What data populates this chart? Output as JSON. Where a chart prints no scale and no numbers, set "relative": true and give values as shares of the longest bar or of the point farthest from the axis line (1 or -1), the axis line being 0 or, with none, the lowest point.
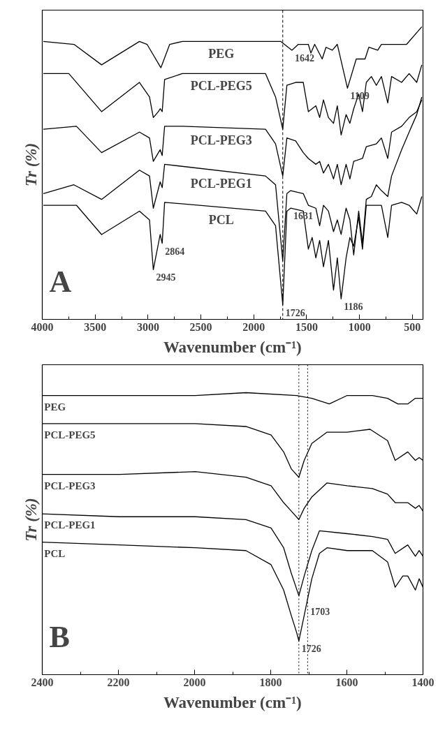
{
  "chart_data": [
    {
      "type": "line",
      "relative": true,
      "xlim": [
        4000,
        400
      ],
      "xticks": [
        4000,
        3500,
        3000,
        2500,
        2000,
        1500,
        1000,
        500
      ],
      "xlabel": "Wavenumber (cm⁻¹)",
      "ylabel": "Tr (%)",
      "tick_labels": "x",
      "line_style": "solid",
      "series": [
        {
          "name": "PEG",
          "color": "#000000",
          "x": [
            3990,
            3700,
            3439,
            3081,
            3009,
            2878,
            2795,
            2676,
            1746,
            1639,
            1579,
            1484,
            1460,
            1424,
            1353,
            1317,
            1257,
            1210,
            1114,
            1031,
            948,
            912,
            828,
            793,
            555,
            411
          ],
          "values": [
            0.95,
            0.94,
            0.87,
            0.95,
            0.94,
            0.86,
            0.94,
            0.95,
            0.95,
            0.92,
            0.94,
            0.94,
            0.91,
            0.94,
            0.89,
            0.93,
            0.92,
            0.94,
            0.79,
            0.89,
            0.89,
            0.93,
            0.92,
            0.94,
            0.94,
            1.0
          ]
        },
        {
          "name": "PCL-PEG5",
          "color": "#000000",
          "x": [
            3990,
            3749,
            3439,
            3081,
            2986,
            2950,
            2902,
            2885,
            2866,
            2843,
            2676,
            2318,
            1889,
            1794,
            1726,
            1687,
            1604,
            1532,
            1484,
            1413,
            1377,
            1341,
            1294,
            1246,
            1210,
            1174,
            1127,
            1091,
            1055,
            1008,
            972,
            936,
            888,
            841,
            793,
            733,
            697,
            602,
            531,
            459,
            411
          ],
          "values": [
            0.84,
            0.84,
            0.71,
            0.81,
            0.76,
            0.69,
            0.71,
            0.72,
            0.71,
            0.82,
            0.84,
            0.84,
            0.84,
            0.76,
            0.65,
            0.8,
            0.81,
            0.81,
            0.71,
            0.73,
            0.69,
            0.75,
            0.69,
            0.67,
            0.73,
            0.63,
            0.7,
            0.67,
            0.72,
            0.77,
            0.71,
            0.81,
            0.83,
            0.8,
            0.83,
            0.74,
            0.83,
            0.81,
            0.84,
            0.81,
            0.87
          ]
        },
        {
          "name": "PCL-PEG3",
          "color": "#000000",
          "x": [
            3990,
            3677,
            3439,
            3081,
            2986,
            2950,
            2885,
            2866,
            2843,
            2676,
            1889,
            1794,
            1726,
            1687,
            1604,
            1532,
            1484,
            1413,
            1377,
            1341,
            1294,
            1246,
            1210,
            1174,
            1127,
            1091,
            1055,
            972,
            936,
            841,
            793,
            733,
            697,
            602,
            531,
            459,
            411
          ],
          "values": [
            0.65,
            0.66,
            0.57,
            0.64,
            0.62,
            0.54,
            0.58,
            0.56,
            0.66,
            0.66,
            0.65,
            0.6,
            0.49,
            0.62,
            0.61,
            0.57,
            0.55,
            0.53,
            0.54,
            0.5,
            0.53,
            0.48,
            0.53,
            0.46,
            0.53,
            0.48,
            0.54,
            0.55,
            0.59,
            0.6,
            0.62,
            0.55,
            0.64,
            0.66,
            0.69,
            0.71,
            0.75
          ]
        },
        {
          "name": "PCL-PEG1",
          "color": "#000000",
          "x": [
            3990,
            3701,
            3439,
            3081,
            2986,
            2950,
            2885,
            2866,
            2843,
            1889,
            1794,
            1726,
            1687,
            1651,
            1532,
            1484,
            1413,
            1377,
            1341,
            1294,
            1246,
            1210,
            1174,
            1127,
            1091,
            1055,
            1008,
            972,
            936,
            888,
            841,
            793,
            733,
            697,
            602,
            531,
            459,
            411
          ],
          "values": [
            0.43,
            0.46,
            0.41,
            0.51,
            0.49,
            0.38,
            0.47,
            0.45,
            0.53,
            0.49,
            0.46,
            0.2,
            0.43,
            0.44,
            0.43,
            0.39,
            0.38,
            0.32,
            0.39,
            0.37,
            0.3,
            0.34,
            0.29,
            0.38,
            0.34,
            0.22,
            0.37,
            0.26,
            0.41,
            0.42,
            0.46,
            0.44,
            0.42,
            0.49,
            0.58,
            0.64,
            0.7,
            0.76
          ]
        },
        {
          "name": "PCL",
          "color": "#000000",
          "x": [
            3990,
            3677,
            3439,
            3081,
            2986,
            2950,
            2885,
            2866,
            2843,
            1889,
            1794,
            1726,
            1687,
            1651,
            1532,
            1484,
            1448,
            1413,
            1377,
            1341,
            1294,
            1246,
            1210,
            1174,
            1127,
            1091,
            1055,
            1008,
            972,
            936,
            841,
            793,
            733,
            697,
            602,
            531,
            459,
            411
          ],
          "values": [
            0.39,
            0.39,
            0.29,
            0.37,
            0.34,
            0.17,
            0.29,
            0.26,
            0.4,
            0.37,
            0.32,
            0.05,
            0.37,
            0.38,
            0.37,
            0.24,
            0.28,
            0.21,
            0.27,
            0.18,
            0.27,
            0.1,
            0.21,
            0.07,
            0.21,
            0.28,
            0.25,
            0.35,
            0.24,
            0.39,
            0.39,
            0.39,
            0.28,
            0.39,
            0.4,
            0.39,
            0.36,
            0.42
          ]
        }
      ],
      "ref_lines": [
        {
          "axis": "x",
          "value": 1726,
          "line_style": "dashed",
          "color": "#000000"
        }
      ],
      "annotations": [
        {
          "text": "1642",
          "x": 1639,
          "y": 0.92
        },
        {
          "text": "1109",
          "x": 1114,
          "y": 0.79
        },
        {
          "text": "2864",
          "x": 2866,
          "y": 0.26
        },
        {
          "text": "2945",
          "x": 2950,
          "y": 0.17
        },
        {
          "text": "1631",
          "x": 1651,
          "y": 0.38
        },
        {
          "text": "1726",
          "x": 1726,
          "y": 0.05
        },
        {
          "text": "1186",
          "x": 1174,
          "y": 0.07
        },
        "A"
      ]
    },
    {
      "type": "line",
      "relative": true,
      "xlim": [
        2400,
        1400
      ],
      "xticks": [
        2400,
        2200,
        2000,
        1800,
        1600,
        1400
      ],
      "xlabel": "Wavenumber (cm⁻¹)",
      "ylabel": "Tr (%)",
      "tick_labels": "x",
      "line_style": "solid",
      "series": [
        {
          "name": "PEG",
          "color": "#000000",
          "x": [
            2400,
            2197,
            1998,
            1865,
            1732,
            1692,
            1646,
            1599,
            1533,
            1493,
            1466,
            1440,
            1420,
            1400
          ],
          "values": [
            0.99,
            0.99,
            0.99,
            1.0,
            0.99,
            0.98,
            0.96,
            0.99,
            0.99,
            0.98,
            0.96,
            0.96,
            0.98,
            0.98
          ]
        },
        {
          "name": "PCL-PEG5",
          "color": "#000000",
          "x": [
            2400,
            2197,
            1998,
            1865,
            1799,
            1766,
            1746,
            1726,
            1712,
            1692,
            1652,
            1599,
            1539,
            1493,
            1473,
            1440,
            1420,
            1410,
            1400
          ],
          "values": [
            0.89,
            0.89,
            0.89,
            0.88,
            0.85,
            0.79,
            0.73,
            0.7,
            0.76,
            0.82,
            0.86,
            0.86,
            0.87,
            0.83,
            0.76,
            0.79,
            0.76,
            0.77,
            0.76
          ]
        },
        {
          "name": "PCL-PEG3",
          "color": "#000000",
          "x": [
            2400,
            2197,
            1998,
            1865,
            1799,
            1766,
            1746,
            1726,
            1712,
            1692,
            1652,
            1599,
            1533,
            1493,
            1473,
            1440,
            1420,
            1410,
            1400
          ],
          "values": [
            0.71,
            0.71,
            0.72,
            0.7,
            0.67,
            0.61,
            0.58,
            0.55,
            0.59,
            0.63,
            0.68,
            0.67,
            0.66,
            0.64,
            0.61,
            0.61,
            0.59,
            0.6,
            0.58
          ]
        },
        {
          "name": "PCL-PEG1",
          "color": "#000000",
          "x": [
            2400,
            2197,
            1998,
            1865,
            1799,
            1766,
            1746,
            1726,
            1712,
            1692,
            1672,
            1599,
            1533,
            1493,
            1473,
            1440,
            1420,
            1410,
            1400
          ],
          "values": [
            0.57,
            0.56,
            0.56,
            0.55,
            0.52,
            0.45,
            0.36,
            0.28,
            0.35,
            0.44,
            0.51,
            0.5,
            0.49,
            0.48,
            0.43,
            0.46,
            0.42,
            0.44,
            0.42
          ]
        },
        {
          "name": "PCL",
          "color": "#000000",
          "x": [
            2400,
            2197,
            1998,
            1865,
            1799,
            1766,
            1746,
            1732,
            1726,
            1712,
            1692,
            1672,
            1652,
            1599,
            1533,
            1493,
            1473,
            1453,
            1440,
            1420,
            1410,
            1400
          ],
          "values": [
            0.47,
            0.46,
            0.45,
            0.44,
            0.39,
            0.3,
            0.21,
            0.15,
            0.12,
            0.21,
            0.34,
            0.43,
            0.45,
            0.44,
            0.44,
            0.4,
            0.31,
            0.35,
            0.35,
            0.3,
            0.34,
            0.31
          ]
        }
      ],
      "ref_lines": [
        {
          "axis": "x",
          "value": 1726,
          "line_style": "dotted",
          "color": "#000000"
        },
        {
          "axis": "x",
          "value": 1703,
          "line_style": "dotted",
          "color": "#000000"
        }
      ],
      "annotations": [
        {
          "text": "1726",
          "x": 1726,
          "y": 0.12
        },
        {
          "text": "1703",
          "x": 1703,
          "y": 0.25
        },
        "B"
      ]
    }
  ]
}
